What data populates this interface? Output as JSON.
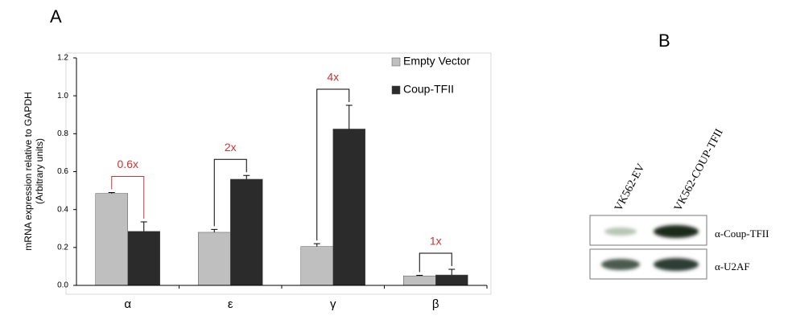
{
  "chart_data": {
    "type": "bar",
    "panel_label": "A",
    "ylabel": [
      "mRNA expression  relative to GAPDH",
      "(Arbitrary units)"
    ],
    "categories": [
      "α",
      "ε",
      "γ",
      "β"
    ],
    "series": [
      {
        "name": "Empty Vector",
        "color": "#bfbfbf",
        "values": [
          0.485,
          0.28,
          0.205,
          0.05
        ],
        "errors": [
          0.005,
          0.015,
          0.015,
          0.003
        ]
      },
      {
        "name": "Coup-TFII",
        "color": "#2b2b2b",
        "values": [
          0.285,
          0.56,
          0.825,
          0.055
        ],
        "errors": [
          0.05,
          0.02,
          0.125,
          0.03
        ]
      }
    ],
    "annotations": [
      "0.6x",
      "2x",
      "4x",
      "1x"
    ],
    "annotation_color": "#cc3333",
    "ylim": [
      0,
      1.2
    ],
    "yticks": [
      {
        "value": 0,
        "label": "0.0"
      },
      0.2,
      0.4,
      0.6,
      0.8,
      {
        "value": 1,
        "label": "1.0"
      },
      1.2
    ],
    "legend": "top-right"
  },
  "blot": {
    "panel_label": "B",
    "lanes": [
      "VK562-EV",
      "VK562-COUP-TFII"
    ],
    "rows": [
      "α-Coup-TFII",
      "α-U2AF"
    ]
  }
}
